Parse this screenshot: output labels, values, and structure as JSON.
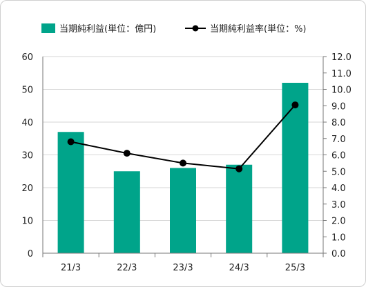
{
  "chart_data": {
    "type": "bar+line",
    "categories": [
      "21/3",
      "22/3",
      "23/3",
      "24/3",
      "25/3"
    ],
    "series": [
      {
        "name": "当期純利益(単位：億円)",
        "type": "bar",
        "axis": "left",
        "color": "#00a48a",
        "values": [
          37,
          25,
          26,
          27,
          52
        ]
      },
      {
        "name": "当期純利益率(単位：%)",
        "type": "line",
        "axis": "right",
        "color": "#000000",
        "values": [
          6.8,
          6.1,
          5.5,
          5.15,
          9.05
        ]
      }
    ],
    "y_left": {
      "min": 0,
      "max": 60,
      "step": 10,
      "ticks": [
        "0",
        "10",
        "20",
        "30",
        "40",
        "50",
        "60"
      ]
    },
    "y_right": {
      "min": 0,
      "max": 12,
      "step": 1,
      "ticks": [
        "0.0",
        "1.0",
        "2.0",
        "3.0",
        "4.0",
        "5.0",
        "6.0",
        "7.0",
        "8.0",
        "9.0",
        "10.0",
        "11.0",
        "12.0"
      ]
    },
    "grid": true,
    "legend_position": "top",
    "gridline_color": "#d6d6d6"
  }
}
